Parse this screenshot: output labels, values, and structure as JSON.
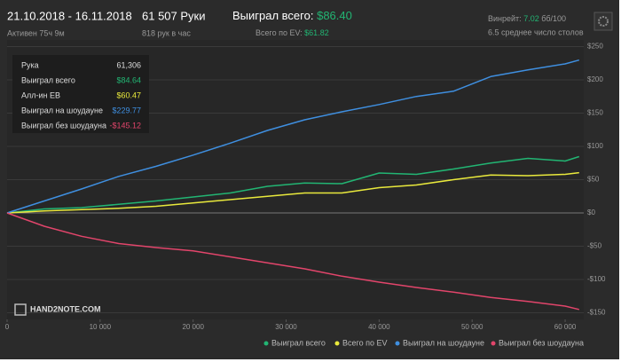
{
  "header": {
    "date_range": "21.10.2018 - 16.11.2018",
    "active": "Активен 75ч 9м",
    "hands": "61 507 Руки",
    "hands_per_hour": "818 рук в час",
    "won_total_label": "Выиграл всего:",
    "won_total_value": "$86.40",
    "ev_total_label": "Всего по EV:",
    "ev_total_value": "$61.82",
    "winrate_label": "Винрейт:",
    "winrate_value": "7.02",
    "winrate_unit": "бб/100",
    "avg_tables": "6.5 среднее число столов"
  },
  "tooltip": {
    "rows": [
      {
        "label": "Рука",
        "value": "61,306"
      },
      {
        "label": "Выиграл всего",
        "value": "$84.64"
      },
      {
        "label": "Алл-ин EB",
        "value": "$60.47"
      },
      {
        "label": "Выиграл на шоудауне",
        "value": "$229.77"
      },
      {
        "label": "Выиграл без шоудауна",
        "value": "-$145.12"
      }
    ]
  },
  "logo": "HAND2NOTE.COM",
  "chart_data": {
    "type": "line",
    "x": [
      0,
      4000,
      8000,
      12000,
      16000,
      20000,
      24000,
      28000,
      32000,
      36000,
      40000,
      44000,
      48000,
      52000,
      56000,
      60000,
      61507
    ],
    "series": [
      {
        "name": "Выиграл всего",
        "color": "#22b573",
        "values": [
          0,
          6,
          8,
          13,
          18,
          24,
          30,
          40,
          45,
          44,
          60,
          58,
          66,
          75,
          82,
          78,
          84.64
        ]
      },
      {
        "name": "Всего по EV",
        "color": "#e9e93c",
        "values": [
          0,
          3,
          5,
          7,
          10,
          15,
          20,
          25,
          30,
          30,
          38,
          42,
          50,
          57,
          56,
          58,
          60.47
        ]
      },
      {
        "name": "Выиграл на шоудауне",
        "color": "#3f8fe0",
        "values": [
          0,
          18,
          36,
          55,
          70,
          87,
          105,
          124,
          140,
          152,
          163,
          175,
          183,
          205,
          215,
          224,
          229.77
        ]
      },
      {
        "name": "Выиграл без шоудауна",
        "color": "#e2456b",
        "values": [
          0,
          -20,
          -35,
          -46,
          -52,
          -57,
          -66,
          -75,
          -84,
          -95,
          -104,
          -112,
          -119,
          -127,
          -133,
          -140,
          -145.12
        ]
      }
    ],
    "xlim": [
      0,
      62000
    ],
    "xticks": [
      0,
      {
        "value": 10000,
        "label": "10 000"
      },
      {
        "value": 20000,
        "label": "20 000"
      },
      {
        "value": 30000,
        "label": "30 000"
      },
      {
        "value": 40000,
        "label": "40 000"
      },
      {
        "value": 50000,
        "label": "50 000"
      },
      {
        "value": 60000,
        "label": "60 000"
      }
    ],
    "ylim": [
      -160,
      260
    ],
    "yticks": [
      {
        "value": -150,
        "label": "-$150"
      },
      {
        "value": -100,
        "label": "-$100"
      },
      {
        "value": -50,
        "label": "-$50"
      },
      {
        "value": 0,
        "label": "$0"
      },
      {
        "value": 50,
        "label": "$50"
      },
      {
        "value": 100,
        "label": "$100"
      },
      {
        "value": 150,
        "label": "$150"
      },
      {
        "value": 200,
        "label": "$200"
      },
      {
        "value": 250,
        "label": "$250"
      }
    ],
    "grid": true,
    "legend": "bottom-right"
  }
}
